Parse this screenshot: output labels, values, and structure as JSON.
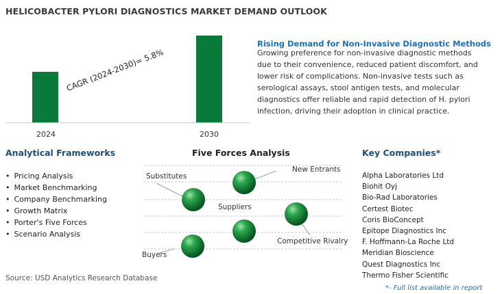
{
  "title": "HELICOBACTER PYLORI DIAGNOSTICS MARKET DEMAND OUTLOOK",
  "chart_data": {
    "type": "bar",
    "categories": [
      "2024",
      "2030"
    ],
    "annotation": "CAGR (2024-2030)=  5.8%",
    "colors": {
      "bar": "#0a7a3a"
    }
  },
  "rising_demand": {
    "title": "Rising Demand for Non-Invasive Diagnostic Methods",
    "body": "Growing preference for non-invasive diagnostic methods due to their convenience, reduced patient discomfort, and lower risk of complications. Non-invasive tests such as serological assays, stool antigen tests, and molecular diagnostics offer reliable and rapid detection of H. pylori infection, driving their adoption in clinical practice."
  },
  "analytical_frameworks": {
    "title": "Analytical Frameworks",
    "items": [
      "Pricing Analysis",
      "Market Benchmarking",
      "Company Benchmarking",
      "Growth Matrix",
      "Porter's Five Forces",
      "Scenario Analysis"
    ]
  },
  "five_forces": {
    "title": "Five Forces Analysis",
    "labels": {
      "substitutes": "Substitutes",
      "new_entrants": "New Entrants",
      "suppliers": "Suppliers",
      "competitive_rivalry": "Competitive Rivalry",
      "buyers": "Buyers"
    }
  },
  "key_companies": {
    "title": "Key Companies*",
    "items": [
      "Alpha Laboratories Ltd",
      "Biohit Oyj",
      "Bio-Rad Laboratories",
      "Certest Biotec",
      "Coris BioConcept",
      "Epitope Diagnostics Inc",
      "F. Hoffmann-La Roche Ltd",
      "Meridian Bioscience",
      "Quest Diagnostics Inc",
      "Thermo Fisher Scientific"
    ],
    "note": "*- Full list available in report"
  },
  "source": "Source: USD Analytics Research Database"
}
